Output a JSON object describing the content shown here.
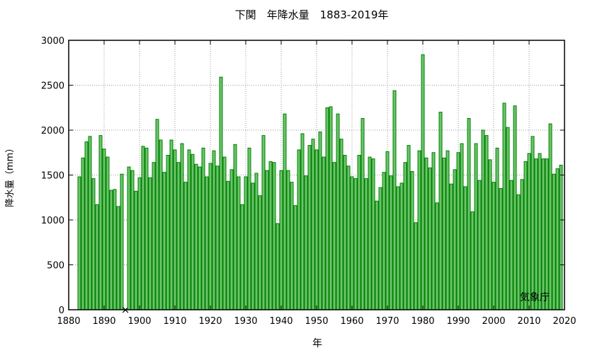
{
  "chart_data": {
    "type": "bar",
    "title": "下関　年降水量　1883-2019年",
    "xlabel": "年",
    "ylabel": "降水量（mm）",
    "credit": "気象庁",
    "xlim": [
      1880,
      2020
    ],
    "ylim": [
      0,
      3000
    ],
    "grid": true,
    "x_ticks": [
      "1880",
      "1890",
      "1900",
      "1910",
      "1920",
      "1930",
      "1940",
      "1950",
      "1960",
      "1970",
      "1980",
      "1990",
      "2000",
      "2010",
      "2020"
    ],
    "y_ticks": [
      "0",
      "500",
      "1000",
      "1500",
      "2000",
      "2500",
      "3000"
    ],
    "bar_color": "#6cc46c",
    "bar_edge_color": "#008000",
    "missing_marker": "×",
    "start_year": 1883,
    "values": [
      1480,
      1690,
      1870,
      1930,
      1460,
      1170,
      1940,
      1790,
      1700,
      1330,
      1340,
      1150,
      1510,
      null,
      1590,
      1550,
      1320,
      1470,
      1820,
      1800,
      1470,
      1640,
      2120,
      1890,
      1530,
      1720,
      1890,
      1780,
      1640,
      1850,
      1420,
      1780,
      1730,
      1620,
      1590,
      1800,
      1480,
      1630,
      1770,
      1600,
      2590,
      1700,
      1430,
      1560,
      1840,
      1480,
      1170,
      1480,
      1800,
      1410,
      1520,
      1270,
      1940,
      1550,
      1650,
      1640,
      960,
      1550,
      2180,
      1550,
      1420,
      1160,
      1780,
      1960,
      1490,
      1830,
      1900,
      1780,
      1980,
      1700,
      2250,
      2260,
      1640,
      2180,
      1900,
      1720,
      1600,
      1480,
      1460,
      1720,
      2130,
      1460,
      1700,
      1680,
      1210,
      1360,
      1530,
      1760,
      1490,
      2440,
      1370,
      1410,
      1640,
      1830,
      1540,
      970,
      1770,
      2840,
      1690,
      1580,
      1750,
      1190,
      2200,
      1690,
      1770,
      1400,
      1560,
      1750,
      1850,
      1370,
      2130,
      1090,
      1850,
      1440,
      2000,
      1940,
      1670,
      1420,
      1800,
      1350,
      2300,
      2030,
      1440,
      2270,
      1280,
      1450,
      1650,
      1740,
      1930,
      1680,
      1740,
      1680,
      1680,
      2070,
      1510,
      1570,
      1610
    ]
  }
}
